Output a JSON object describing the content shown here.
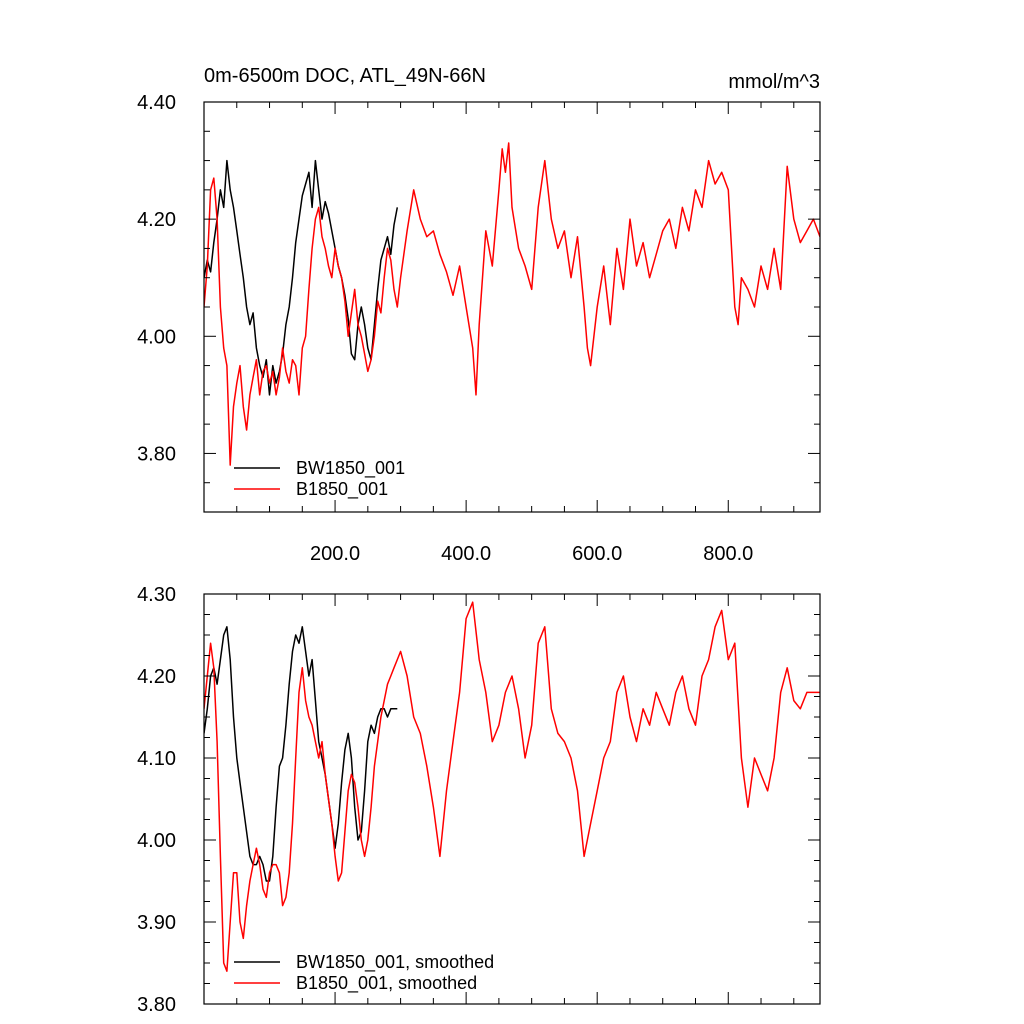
{
  "chart_data": [
    {
      "type": "line",
      "title": "0m-6500m DOC, ATL_49N-66N",
      "units": "mmol/m^3",
      "xlim": [
        0,
        940
      ],
      "ylim": [
        3.7,
        4.4
      ],
      "yticks": [
        3.8,
        4.0,
        4.2,
        4.4
      ],
      "ytick_labels": [
        "3.80",
        "4.00",
        "4.20",
        "4.40"
      ],
      "xticks": [
        200,
        400,
        600,
        800
      ],
      "xtick_labels": [
        "200.0",
        "400.0",
        "600.0",
        "800.0"
      ],
      "show_xtick_labels": true,
      "legend_position": "bottom-left",
      "series": [
        {
          "name": "BW1850_001",
          "color": "#000000",
          "x": [
            0,
            5,
            10,
            15,
            20,
            25,
            30,
            35,
            40,
            45,
            50,
            55,
            60,
            65,
            70,
            75,
            80,
            85,
            90,
            95,
            100,
            105,
            110,
            115,
            120,
            125,
            130,
            135,
            140,
            145,
            150,
            155,
            160,
            165,
            170,
            175,
            180,
            185,
            190,
            195,
            200,
            205,
            210,
            215,
            220,
            225,
            230,
            235,
            240,
            245,
            250,
            255,
            260,
            265,
            270,
            275,
            280,
            285,
            290,
            295
          ],
          "values": [
            4.1,
            4.13,
            4.11,
            4.16,
            4.2,
            4.25,
            4.22,
            4.3,
            4.25,
            4.22,
            4.18,
            4.14,
            4.1,
            4.05,
            4.02,
            4.04,
            3.98,
            3.95,
            3.93,
            3.96,
            3.9,
            3.95,
            3.92,
            3.94,
            3.97,
            4.02,
            4.05,
            4.1,
            4.16,
            4.2,
            4.24,
            4.26,
            4.28,
            4.22,
            4.3,
            4.25,
            4.2,
            4.23,
            4.21,
            4.18,
            4.15,
            4.12,
            4.1,
            4.07,
            4.03,
            3.97,
            3.96,
            4.02,
            4.05,
            4.02,
            3.98,
            3.96,
            4.02,
            4.08,
            4.13,
            4.15,
            4.17,
            4.14,
            4.19,
            4.22
          ]
        },
        {
          "name": "B1850_001",
          "color": "#ff0000",
          "x": [
            0,
            5,
            10,
            15,
            20,
            25,
            30,
            35,
            40,
            45,
            50,
            55,
            60,
            65,
            70,
            75,
            80,
            85,
            90,
            95,
            100,
            105,
            110,
            115,
            120,
            125,
            130,
            135,
            140,
            145,
            150,
            155,
            160,
            165,
            170,
            175,
            180,
            185,
            190,
            195,
            200,
            205,
            210,
            215,
            220,
            225,
            230,
            235,
            240,
            245,
            250,
            255,
            260,
            265,
            270,
            275,
            280,
            285,
            290,
            295,
            300,
            310,
            320,
            330,
            340,
            350,
            360,
            370,
            380,
            390,
            400,
            410,
            415,
            420,
            430,
            440,
            450,
            455,
            460,
            465,
            470,
            480,
            490,
            500,
            510,
            520,
            530,
            540,
            550,
            560,
            570,
            580,
            585,
            590,
            600,
            610,
            620,
            630,
            640,
            650,
            660,
            670,
            680,
            690,
            700,
            710,
            720,
            730,
            740,
            750,
            760,
            770,
            780,
            790,
            800,
            810,
            815,
            820,
            830,
            840,
            850,
            860,
            870,
            880,
            890,
            900,
            910,
            920,
            930,
            940
          ],
          "values": [
            4.05,
            4.12,
            4.25,
            4.27,
            4.2,
            4.05,
            3.98,
            3.95,
            3.78,
            3.88,
            3.92,
            3.95,
            3.88,
            3.84,
            3.9,
            3.93,
            3.96,
            3.9,
            3.94,
            3.95,
            3.92,
            3.94,
            3.9,
            3.93,
            3.98,
            3.94,
            3.92,
            3.96,
            3.95,
            3.9,
            3.98,
            4.0,
            4.08,
            4.15,
            4.2,
            4.22,
            4.17,
            4.15,
            4.12,
            4.1,
            4.15,
            4.12,
            4.1,
            4.06,
            4.0,
            4.04,
            4.08,
            4.02,
            4.0,
            3.97,
            3.94,
            3.96,
            4.0,
            4.06,
            4.04,
            4.1,
            4.15,
            4.13,
            4.08,
            4.05,
            4.1,
            4.18,
            4.25,
            4.2,
            4.17,
            4.18,
            4.14,
            4.11,
            4.07,
            4.12,
            4.05,
            3.98,
            3.9,
            4.02,
            4.18,
            4.12,
            4.25,
            4.32,
            4.28,
            4.33,
            4.22,
            4.15,
            4.12,
            4.08,
            4.22,
            4.3,
            4.2,
            4.15,
            4.18,
            4.1,
            4.17,
            4.05,
            3.98,
            3.95,
            4.05,
            4.12,
            4.02,
            4.15,
            4.08,
            4.2,
            4.12,
            4.16,
            4.1,
            4.14,
            4.18,
            4.2,
            4.15,
            4.22,
            4.18,
            4.25,
            4.22,
            4.3,
            4.26,
            4.28,
            4.25,
            4.05,
            4.02,
            4.1,
            4.08,
            4.05,
            4.12,
            4.08,
            4.15,
            4.08,
            4.29,
            4.2,
            4.16,
            4.18,
            4.2,
            4.17
          ]
        }
      ]
    },
    {
      "type": "line",
      "title": "",
      "units": "",
      "xlim": [
        0,
        940
      ],
      "ylim": [
        3.8,
        4.3
      ],
      "yticks": [
        3.8,
        3.9,
        4.0,
        4.1,
        4.2,
        4.3
      ],
      "ytick_labels": [
        "3.80",
        "3.90",
        "4.00",
        "4.10",
        "4.20",
        "4.30"
      ],
      "xticks": [
        200,
        400,
        600,
        800
      ],
      "xtick_labels": [],
      "show_xtick_labels": false,
      "legend_position": "bottom-left",
      "series": [
        {
          "name": "BW1850_001, smoothed",
          "color": "#000000",
          "x": [
            0,
            5,
            10,
            15,
            20,
            25,
            30,
            35,
            40,
            45,
            50,
            55,
            60,
            65,
            70,
            75,
            80,
            85,
            90,
            95,
            100,
            105,
            110,
            115,
            120,
            125,
            130,
            135,
            140,
            145,
            150,
            155,
            160,
            165,
            170,
            175,
            180,
            185,
            190,
            195,
            200,
            205,
            210,
            215,
            220,
            225,
            230,
            235,
            240,
            245,
            250,
            255,
            260,
            265,
            270,
            275,
            280,
            285,
            290,
            295
          ],
          "values": [
            4.13,
            4.16,
            4.2,
            4.21,
            4.19,
            4.22,
            4.25,
            4.26,
            4.22,
            4.15,
            4.1,
            4.07,
            4.04,
            4.01,
            3.98,
            3.97,
            3.97,
            3.98,
            3.97,
            3.95,
            3.95,
            3.98,
            4.04,
            4.09,
            4.1,
            4.14,
            4.19,
            4.23,
            4.25,
            4.24,
            4.26,
            4.23,
            4.2,
            4.22,
            4.17,
            4.12,
            4.1,
            4.08,
            4.05,
            4.02,
            3.99,
            4.02,
            4.07,
            4.11,
            4.13,
            4.1,
            4.04,
            4.0,
            4.01,
            4.06,
            4.12,
            4.14,
            4.13,
            4.15,
            4.16,
            4.16,
            4.15,
            4.16,
            4.16,
            4.16
          ]
        },
        {
          "name": "B1850_001, smoothed",
          "color": "#ff0000",
          "x": [
            0,
            5,
            10,
            15,
            20,
            25,
            30,
            35,
            40,
            45,
            50,
            55,
            60,
            65,
            70,
            75,
            80,
            85,
            90,
            95,
            100,
            105,
            110,
            115,
            120,
            125,
            130,
            135,
            140,
            145,
            150,
            155,
            160,
            165,
            170,
            175,
            180,
            185,
            190,
            195,
            200,
            205,
            210,
            215,
            220,
            225,
            230,
            235,
            240,
            245,
            250,
            255,
            260,
            265,
            270,
            275,
            280,
            285,
            290,
            295,
            300,
            310,
            320,
            330,
            340,
            350,
            360,
            370,
            380,
            390,
            400,
            410,
            420,
            430,
            440,
            450,
            460,
            470,
            480,
            490,
            500,
            510,
            520,
            530,
            540,
            550,
            560,
            570,
            580,
            590,
            600,
            610,
            620,
            630,
            640,
            650,
            660,
            670,
            680,
            690,
            700,
            710,
            720,
            730,
            740,
            750,
            760,
            770,
            780,
            790,
            800,
            810,
            820,
            830,
            840,
            850,
            860,
            870,
            880,
            890,
            900,
            910,
            920,
            930,
            940
          ],
          "values": [
            4.16,
            4.2,
            4.24,
            4.21,
            4.12,
            3.98,
            3.85,
            3.84,
            3.9,
            3.96,
            3.96,
            3.9,
            3.88,
            3.92,
            3.95,
            3.97,
            3.99,
            3.97,
            3.94,
            3.93,
            3.96,
            3.97,
            3.97,
            3.96,
            3.92,
            3.93,
            3.96,
            4.02,
            4.1,
            4.18,
            4.21,
            4.17,
            4.15,
            4.14,
            4.12,
            4.1,
            4.12,
            4.08,
            4.05,
            4.02,
            3.98,
            3.95,
            3.96,
            4.01,
            4.06,
            4.08,
            4.07,
            4.04,
            4.0,
            3.98,
            4.0,
            4.04,
            4.09,
            4.12,
            4.15,
            4.17,
            4.19,
            4.2,
            4.21,
            4.22,
            4.23,
            4.2,
            4.15,
            4.13,
            4.09,
            4.04,
            3.98,
            4.06,
            4.12,
            4.18,
            4.27,
            4.29,
            4.22,
            4.18,
            4.12,
            4.14,
            4.18,
            4.2,
            4.16,
            4.1,
            4.14,
            4.24,
            4.26,
            4.16,
            4.13,
            4.12,
            4.1,
            4.06,
            3.98,
            4.02,
            4.06,
            4.1,
            4.12,
            4.18,
            4.2,
            4.15,
            4.12,
            4.16,
            4.14,
            4.18,
            4.16,
            4.14,
            4.18,
            4.2,
            4.16,
            4.14,
            4.2,
            4.22,
            4.26,
            4.28,
            4.22,
            4.24,
            4.1,
            4.04,
            4.1,
            4.08,
            4.06,
            4.1,
            4.18,
            4.21,
            4.17,
            4.16,
            4.18,
            4.18,
            4.18
          ]
        }
      ]
    }
  ]
}
